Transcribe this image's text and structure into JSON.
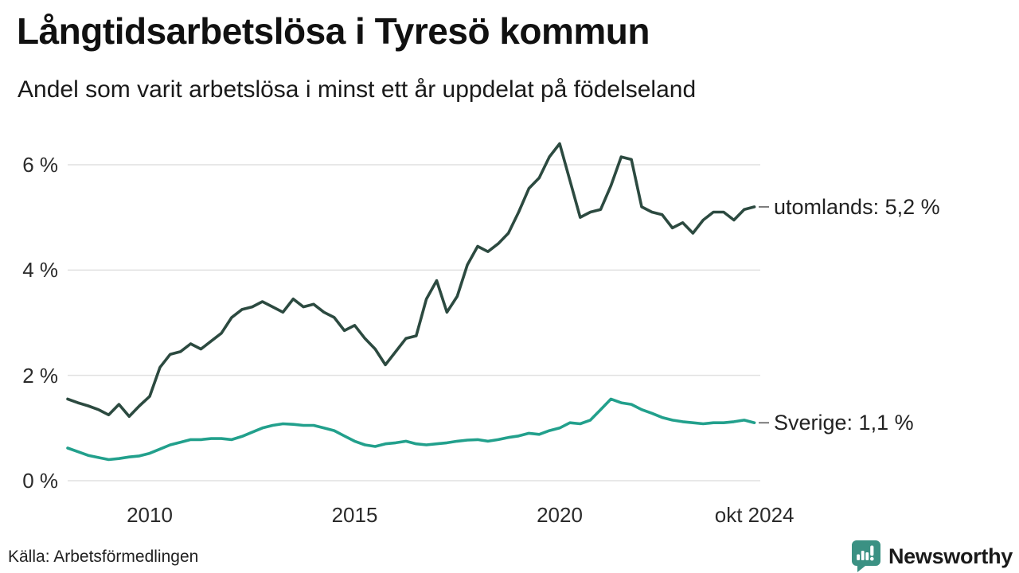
{
  "header": {
    "title": "Långtidsarbetslösa i Tyresö kommun",
    "subtitle": "Andel som varit arbetslösa i minst ett år uppdelat på födelseland"
  },
  "footer": {
    "source": "Källa: Arbetsförmedlingen",
    "brand": "Newsworthy"
  },
  "colors": {
    "utomlands_line": "#2c4a40",
    "sverige_line": "#22a08c",
    "gridline": "#e0e0e0",
    "legend_dash": "#7a7a7a",
    "brand_teal": "#3b9183",
    "text_dark": "#1a1a1a"
  },
  "chart_data": {
    "type": "line",
    "title": "Långtidsarbetslösa i Tyresö kommun",
    "subtitle": "Andel som varit arbetslösa i minst ett år uppdelat på födelseland",
    "source": "Källa: Arbetsförmedlingen",
    "grid": "horizontal",
    "legend_position": "right-of-line-end",
    "x_axis": {
      "label": "",
      "range": [
        2008,
        2024.83
      ],
      "ticks": [
        {
          "label": "2010",
          "year": 2010
        },
        {
          "label": "2015",
          "year": 2015
        },
        {
          "label": "2020",
          "year": 2020
        },
        {
          "label": "okt 2024",
          "year": 2024.75
        }
      ]
    },
    "y_axis": {
      "label": "",
      "unit": "%",
      "range": [
        0,
        6.6
      ],
      "ticks": [
        {
          "label": "6 %",
          "value": 6
        },
        {
          "label": "4 %",
          "value": 4
        },
        {
          "label": "2 %",
          "value": 2
        },
        {
          "label": "0 %",
          "value": 0
        }
      ]
    },
    "series": [
      {
        "name": "utomlands",
        "end_label": "utomlands: 5,2 %",
        "end_value": 5.2,
        "color": "#2c4a40",
        "x_start": 2008.0,
        "x_step": 0.25,
        "values": [
          1.55,
          1.48,
          1.42,
          1.35,
          1.25,
          1.45,
          1.22,
          1.42,
          1.6,
          2.15,
          2.4,
          2.45,
          2.6,
          2.5,
          2.65,
          2.8,
          3.1,
          3.25,
          3.3,
          3.4,
          3.3,
          3.2,
          3.45,
          3.3,
          3.35,
          3.2,
          3.1,
          2.85,
          2.95,
          2.7,
          2.5,
          2.2,
          2.45,
          2.7,
          2.75,
          3.45,
          3.8,
          3.2,
          3.5,
          4.1,
          4.45,
          4.35,
          4.5,
          4.7,
          5.1,
          5.55,
          5.75,
          6.15,
          6.4,
          5.7,
          5.0,
          5.1,
          5.15,
          5.6,
          6.15,
          6.1,
          5.2,
          5.1,
          5.05,
          4.8,
          4.9,
          4.7,
          4.95,
          5.1,
          5.1,
          4.95,
          5.15,
          5.2
        ]
      },
      {
        "name": "sverige",
        "end_label": "Sverige: 1,1 %",
        "end_value": 1.1,
        "color": "#22a08c",
        "x_start": 2008.0,
        "x_step": 0.25,
        "values": [
          0.62,
          0.55,
          0.48,
          0.44,
          0.4,
          0.42,
          0.45,
          0.47,
          0.52,
          0.6,
          0.68,
          0.73,
          0.78,
          0.78,
          0.8,
          0.8,
          0.78,
          0.84,
          0.92,
          1.0,
          1.05,
          1.08,
          1.07,
          1.05,
          1.05,
          1.0,
          0.95,
          0.85,
          0.75,
          0.68,
          0.65,
          0.7,
          0.72,
          0.75,
          0.7,
          0.68,
          0.7,
          0.72,
          0.75,
          0.77,
          0.78,
          0.75,
          0.78,
          0.82,
          0.85,
          0.9,
          0.88,
          0.95,
          1.0,
          1.1,
          1.08,
          1.15,
          1.35,
          1.55,
          1.48,
          1.45,
          1.35,
          1.28,
          1.2,
          1.15,
          1.12,
          1.1,
          1.08,
          1.1,
          1.1,
          1.12,
          1.15,
          1.1
        ]
      }
    ]
  }
}
